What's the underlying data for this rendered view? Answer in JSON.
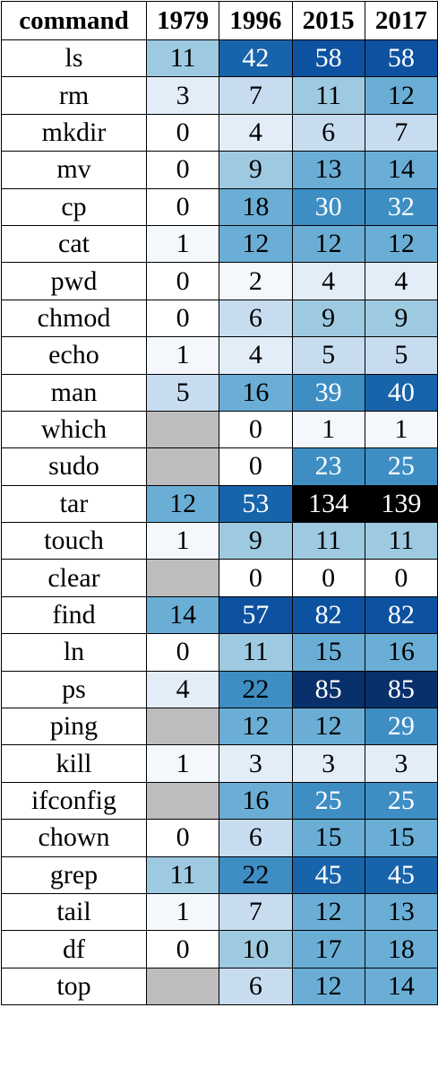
{
  "chart_data": {
    "type": "heatmap",
    "columns": [
      "command",
      "1979",
      "1996",
      "2015",
      "2017"
    ],
    "rows": [
      {
        "command": "ls",
        "values": [
          11,
          42,
          58,
          58
        ]
      },
      {
        "command": "rm",
        "values": [
          3,
          7,
          11,
          12
        ]
      },
      {
        "command": "mkdir",
        "values": [
          0,
          4,
          6,
          7
        ]
      },
      {
        "command": "mv",
        "values": [
          0,
          9,
          13,
          14
        ]
      },
      {
        "command": "cp",
        "values": [
          0,
          18,
          30,
          32
        ]
      },
      {
        "command": "cat",
        "values": [
          1,
          12,
          12,
          12
        ]
      },
      {
        "command": "pwd",
        "values": [
          0,
          2,
          4,
          4
        ]
      },
      {
        "command": "chmod",
        "values": [
          0,
          6,
          9,
          9
        ]
      },
      {
        "command": "echo",
        "values": [
          1,
          4,
          5,
          5
        ]
      },
      {
        "command": "man",
        "values": [
          5,
          16,
          39,
          40
        ]
      },
      {
        "command": "which",
        "values": [
          null,
          0,
          1,
          1
        ]
      },
      {
        "command": "sudo",
        "values": [
          null,
          0,
          23,
          25
        ]
      },
      {
        "command": "tar",
        "values": [
          12,
          53,
          134,
          139
        ]
      },
      {
        "command": "touch",
        "values": [
          1,
          9,
          11,
          11
        ]
      },
      {
        "command": "clear",
        "values": [
          null,
          0,
          0,
          0
        ]
      },
      {
        "command": "find",
        "values": [
          14,
          57,
          82,
          82
        ]
      },
      {
        "command": "ln",
        "values": [
          0,
          11,
          15,
          16
        ]
      },
      {
        "command": "ps",
        "values": [
          4,
          22,
          85,
          85
        ]
      },
      {
        "command": "ping",
        "values": [
          null,
          12,
          12,
          29
        ]
      },
      {
        "command": "kill",
        "values": [
          1,
          3,
          3,
          3
        ]
      },
      {
        "command": "ifconfig",
        "values": [
          null,
          16,
          25,
          25
        ]
      },
      {
        "command": "chown",
        "values": [
          0,
          6,
          15,
          15
        ]
      },
      {
        "command": "grep",
        "values": [
          11,
          22,
          45,
          45
        ]
      },
      {
        "command": "tail",
        "values": [
          1,
          7,
          12,
          13
        ]
      },
      {
        "command": "df",
        "values": [
          0,
          10,
          17,
          18
        ]
      },
      {
        "command": "top",
        "values": [
          null,
          6,
          12,
          14
        ]
      }
    ],
    "colors": {
      "missing": "#bdbdbd",
      "max": "#000000",
      "scale": [
        "#ffffff",
        "#f4f8fd",
        "#e2edf8",
        "#c8dcf0",
        "#9ecae1",
        "#6aaed6",
        "#3e8ec4",
        "#1764ab",
        "#0d52a0",
        "#08306b"
      ]
    }
  }
}
